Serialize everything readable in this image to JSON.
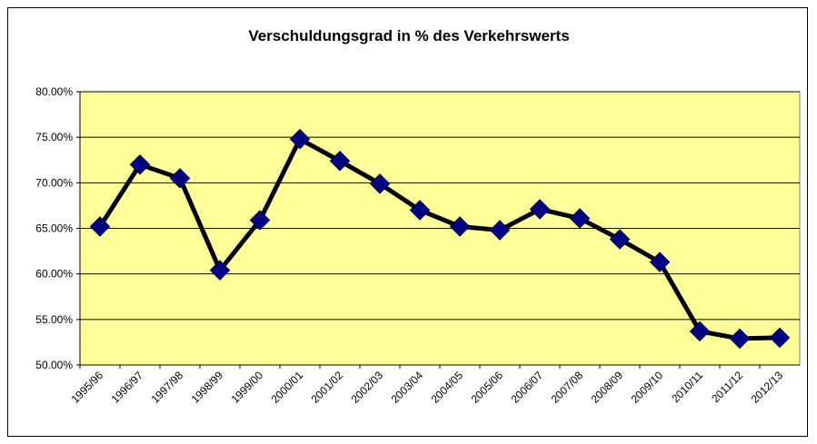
{
  "chart_data": {
    "type": "line",
    "title": "Verschuldungsgrad in % des Verkehrswerts",
    "categories": [
      "1995/96",
      "1996/97",
      "1997/98",
      "1998/99",
      "1999/00",
      "2000/01",
      "2001/02",
      "2002/03",
      "2003/04",
      "2004/05",
      "2005/06",
      "2006/07",
      "2007/08",
      "2008/09",
      "2009/10",
      "2010/11",
      "2011/12",
      "2012/13"
    ],
    "values": [
      65.2,
      72.0,
      70.5,
      60.4,
      65.9,
      74.8,
      72.4,
      69.9,
      67.0,
      65.2,
      64.8,
      67.1,
      66.1,
      63.8,
      61.3,
      53.7,
      52.9,
      53.0
    ],
    "color": "#000000",
    "marker_color": "#000080",
    "plot_background": "#ffff99",
    "ylim": [
      50,
      80
    ],
    "yticks": [
      {
        "value": 50,
        "label": "50.00%"
      },
      {
        "value": 55,
        "label": "55.00%"
      },
      {
        "value": 60,
        "label": "60.00%"
      },
      {
        "value": 65,
        "label": "65.00%"
      },
      {
        "value": 70,
        "label": "70.00%"
      },
      {
        "value": 75,
        "label": "75.00%"
      },
      {
        "value": 80,
        "label": "80.00%"
      }
    ],
    "grid": true
  }
}
